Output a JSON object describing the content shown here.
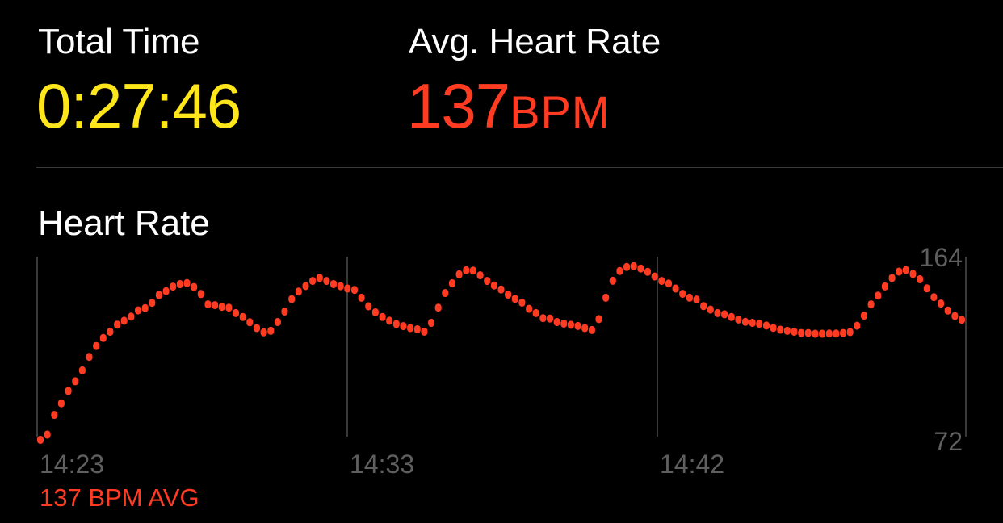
{
  "total_time": {
    "label": "Total Time",
    "value": "0:27:46"
  },
  "avg_heart_rate": {
    "label": "Avg. Heart Rate",
    "value": "137",
    "unit": "BPM"
  },
  "heart_rate_section": {
    "title": "Heart Rate"
  },
  "colors": {
    "time": "#ffe61a",
    "heart": "#ff3b22",
    "muted": "#5f5f5f",
    "grid": "#3a3a3a"
  },
  "chart_data": {
    "type": "scatter",
    "title": "Heart Rate",
    "x_ticks": [
      "14:23",
      "14:33",
      "14:42"
    ],
    "y_ticks": [
      "164",
      "72"
    ],
    "ylim": [
      72,
      164
    ],
    "avg_label": "137 BPM AVG",
    "grid": true,
    "series": [
      {
        "values": [
          72.4,
          75.1,
          85.2,
          91.2,
          97.5,
          102.5,
          108.1,
          115.0,
          120.6,
          124.7,
          127.9,
          131.6,
          133.6,
          135.7,
          138.9,
          140.1,
          142.8,
          146.8,
          148.8,
          151.1,
          152.4,
          152.9,
          150.9,
          147.3,
          142.0,
          141.6,
          140.7,
          140.3,
          137.5,
          135.5,
          132.8,
          129.8,
          127.6,
          128.4,
          132.9,
          138.3,
          144.7,
          148.6,
          151.4,
          154.0,
          155.6,
          154.0,
          152.4,
          151.3,
          150.1,
          149.4,
          145.4,
          141.0,
          137.9,
          135.5,
          133.6,
          131.9,
          130.8,
          129.8,
          129.2,
          128.0,
          132.5,
          140.3,
          147.8,
          152.8,
          157.4,
          159.5,
          159.3,
          156.9,
          154.0,
          151.7,
          149.6,
          147.0,
          144.8,
          142.9,
          139.7,
          137.5,
          134.9,
          134.7,
          132.9,
          132.1,
          131.5,
          130.9,
          129.8,
          128.8,
          134.4,
          145.4,
          154.1,
          159.1,
          161.2,
          161.6,
          160.4,
          158.7,
          156.3,
          154.0,
          152.7,
          150.1,
          147.4,
          145.4,
          144.5,
          141.1,
          139.3,
          137.5,
          136.9,
          135.5,
          134.2,
          133.0,
          132.5,
          132.0,
          131.1,
          129.9,
          129.0,
          128.4,
          127.9,
          127.3,
          127.3,
          126.9,
          126.9,
          127.0,
          127.0,
          127.3,
          127.8,
          131.0,
          136.2,
          142.0,
          146.5,
          151.2,
          155.5,
          158.8,
          159.6,
          157.6,
          154.9,
          150.2,
          145.7,
          142.4,
          138.8,
          136.0,
          134.1
        ]
      }
    ]
  }
}
